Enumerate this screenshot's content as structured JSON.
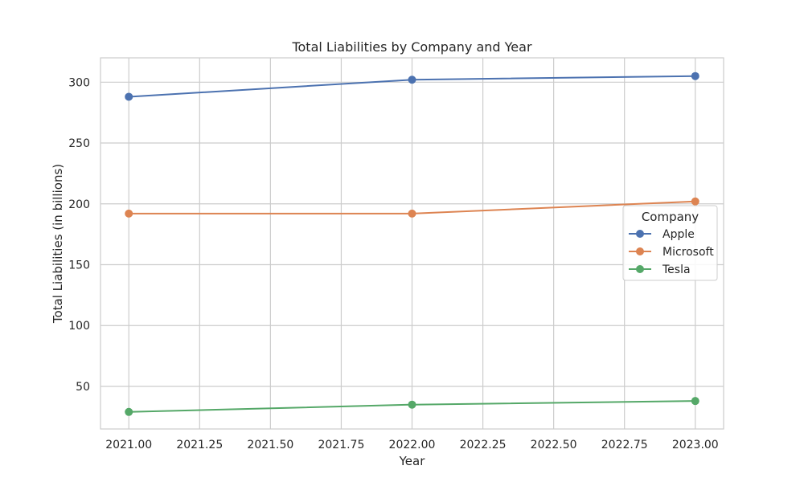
{
  "chart_data": {
    "type": "line",
    "title": "Total Liabilities by Company and Year",
    "xlabel": "Year",
    "ylabel": "Total Liabilities (in billions)",
    "x": [
      2021,
      2022,
      2023
    ],
    "xlim": [
      2020.9,
      2023.1
    ],
    "ylim": [
      15,
      320
    ],
    "x_ticks": [
      2021.0,
      2021.25,
      2021.5,
      2021.75,
      2022.0,
      2022.25,
      2022.5,
      2022.75,
      2023.0
    ],
    "x_tick_labels": [
      "2021.00",
      "2021.25",
      "2021.50",
      "2021.75",
      "2022.00",
      "2022.25",
      "2022.50",
      "2022.75",
      "2023.00"
    ],
    "y_ticks": [
      50,
      100,
      150,
      200,
      250,
      300
    ],
    "y_tick_labels": [
      "50",
      "100",
      "150",
      "200",
      "250",
      "300"
    ],
    "grid": true,
    "legend": {
      "title": "Company",
      "placement": "right"
    },
    "series": [
      {
        "name": "Apple",
        "values": [
          288,
          302,
          305
        ],
        "color": "#4c72b0"
      },
      {
        "name": "Microsoft",
        "values": [
          192,
          192,
          202
        ],
        "color": "#dd8452"
      },
      {
        "name": "Tesla",
        "values": [
          29,
          35,
          38
        ],
        "color": "#55a868"
      }
    ]
  }
}
